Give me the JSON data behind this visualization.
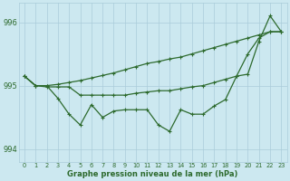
{
  "x": [
    0,
    1,
    2,
    3,
    4,
    5,
    6,
    7,
    8,
    9,
    10,
    11,
    12,
    13,
    14,
    15,
    16,
    17,
    18,
    19,
    20,
    21,
    22,
    23
  ],
  "line_wavy": [
    995.15,
    995.0,
    995.0,
    994.8,
    994.55,
    994.38,
    994.7,
    994.5,
    994.6,
    994.62,
    994.62,
    994.62,
    994.38,
    994.28,
    994.62,
    994.55,
    994.55,
    994.68,
    994.78,
    995.15,
    995.18,
    995.7,
    996.1,
    995.85
  ],
  "line_upper": [
    995.15,
    995.0,
    994.98,
    994.98,
    994.98,
    994.85,
    994.85,
    994.85,
    994.85,
    994.85,
    994.88,
    994.9,
    994.92,
    994.92,
    994.95,
    994.98,
    995.0,
    995.05,
    995.1,
    995.15,
    995.5,
    995.75,
    995.85,
    995.85
  ],
  "line_trend": [
    995.15,
    995.0,
    995.0,
    995.02,
    995.05,
    995.08,
    995.12,
    995.16,
    995.2,
    995.25,
    995.3,
    995.35,
    995.38,
    995.42,
    995.45,
    995.5,
    995.55,
    995.6,
    995.65,
    995.7,
    995.75,
    995.8,
    995.85,
    995.85
  ],
  "ylim": [
    993.8,
    996.3
  ],
  "yticks": [
    994,
    995,
    996
  ],
  "xticks": [
    0,
    1,
    2,
    3,
    4,
    5,
    6,
    7,
    8,
    9,
    10,
    11,
    12,
    13,
    14,
    15,
    16,
    17,
    18,
    19,
    20,
    21,
    22,
    23
  ],
  "line_color": "#2d6a2d",
  "bg_color": "#cce8f0",
  "grid_color": "#aaccda",
  "xlabel": "Graphe pression niveau de la mer (hPa)",
  "tick_color": "#2d6a2d",
  "marker": "+"
}
